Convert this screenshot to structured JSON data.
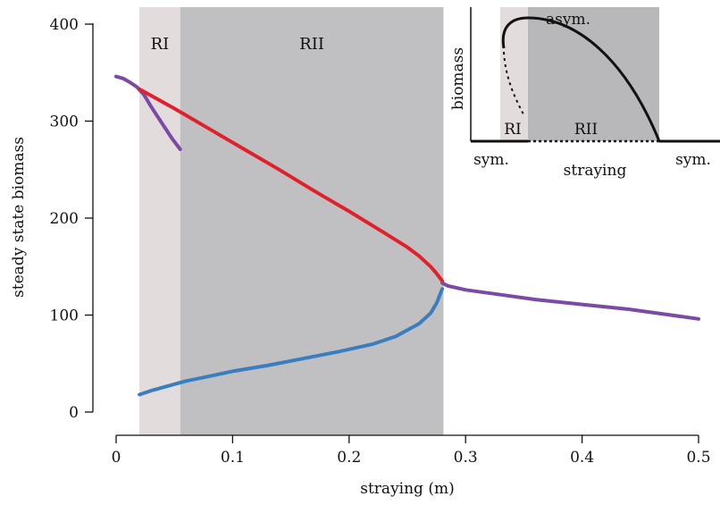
{
  "chart_data": {
    "type": "line",
    "xlabel": "straying (m)",
    "ylabel": "steady state biomass",
    "xlim": [
      -0.02,
      0.51
    ],
    "ylim": [
      -15,
      405
    ],
    "x_ticks": [
      0,
      0.1,
      0.2,
      0.3,
      0.4,
      0.5
    ],
    "x_tick_labels": [
      "0",
      "0.1",
      "0.2",
      "0.3",
      "0.4",
      "0.5"
    ],
    "y_ticks": [
      0,
      100,
      200,
      300,
      400
    ],
    "y_tick_labels": [
      "0",
      "100",
      "200",
      "300",
      "400"
    ],
    "grid": false,
    "regions": [
      {
        "label": "RI",
        "x_start": 0.02,
        "x_end": 0.055,
        "color": "#e3dcdc"
      },
      {
        "label": "RII",
        "x_start": 0.055,
        "x_end": 0.281,
        "color": "#c0c0c2"
      }
    ],
    "series": [
      {
        "color": "#7b4aa6",
        "points": [
          [
            0.0,
            346
          ],
          [
            0.006,
            344
          ],
          [
            0.012,
            340
          ],
          [
            0.018,
            335
          ],
          [
            0.024,
            327
          ],
          [
            0.03,
            315
          ],
          [
            0.036,
            304
          ],
          [
            0.042,
            293
          ],
          [
            0.048,
            282
          ],
          [
            0.055,
            271
          ]
        ]
      },
      {
        "color": "#e0212b",
        "points": [
          [
            0.02,
            333
          ],
          [
            0.05,
            313
          ],
          [
            0.08,
            292
          ],
          [
            0.11,
            271
          ],
          [
            0.14,
            250
          ],
          [
            0.17,
            228
          ],
          [
            0.2,
            207
          ],
          [
            0.23,
            185
          ],
          [
            0.25,
            170
          ],
          [
            0.26,
            161
          ],
          [
            0.27,
            150
          ],
          [
            0.275,
            143
          ],
          [
            0.28,
            135
          ]
        ]
      },
      {
        "color": "#3a7ebf",
        "points": [
          [
            0.02,
            18
          ],
          [
            0.03,
            22
          ],
          [
            0.045,
            27
          ],
          [
            0.06,
            32
          ],
          [
            0.08,
            37
          ],
          [
            0.1,
            42
          ],
          [
            0.13,
            48
          ],
          [
            0.16,
            55
          ],
          [
            0.19,
            62
          ],
          [
            0.22,
            70
          ],
          [
            0.24,
            78
          ],
          [
            0.26,
            91
          ],
          [
            0.27,
            102
          ],
          [
            0.275,
            112
          ],
          [
            0.28,
            127
          ]
        ]
      },
      {
        "color": "#7b4aa6",
        "points": [
          [
            0.28,
            133
          ],
          [
            0.285,
            130
          ],
          [
            0.3,
            126
          ],
          [
            0.33,
            121
          ],
          [
            0.36,
            116
          ],
          [
            0.4,
            111
          ],
          [
            0.44,
            106
          ],
          [
            0.47,
            101
          ],
          [
            0.5,
            96
          ]
        ]
      }
    ],
    "inset": {
      "ylabel": "biomass",
      "xlabel": "straying",
      "left_label": "sym.",
      "right_label": "sym.",
      "top_label": "asym.",
      "region_labels": [
        "RI",
        "RII"
      ]
    }
  }
}
